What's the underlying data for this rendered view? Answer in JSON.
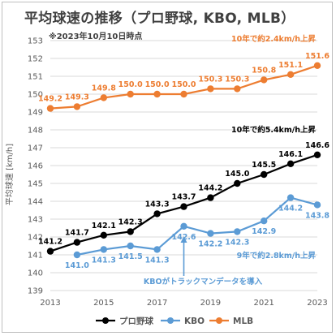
{
  "title": "平均球速の推移（プロ野球, KBO, MLB）",
  "subtitle": "※2023年10月10日時点",
  "chart_data": {
    "type": "line",
    "ylabel": "平均球速 [km/h]",
    "xlabel": "",
    "ylim": [
      139,
      153
    ],
    "xlim": [
      2013,
      2023
    ],
    "yticks": [
      "139",
      "140",
      "141",
      "142",
      "143",
      "144",
      "145",
      "146",
      "147",
      "148",
      "149",
      "150",
      "151",
      "152",
      "153"
    ],
    "xticks": [
      "2013",
      "2015",
      "2017",
      "2019",
      "2021",
      "2023"
    ],
    "grid": true,
    "legend_position": "bottom",
    "series": [
      {
        "name": "プロ野球",
        "color": "#000000",
        "x": [
          2013,
          2014,
          2015,
          2016,
          2017,
          2018,
          2019,
          2020,
          2021,
          2022,
          2023
        ],
        "values": [
          141.2,
          141.7,
          142.1,
          142.3,
          143.3,
          143.7,
          144.2,
          145.0,
          145.5,
          146.1,
          146.6
        ],
        "labels": [
          "141.2",
          "141.7",
          "142.1",
          "142.3",
          "143.3",
          "143.7",
          "144.2",
          "145.0",
          "145.5",
          "146.1",
          "146.6"
        ]
      },
      {
        "name": "KBO",
        "color": "#5b9bd5",
        "x": [
          2014,
          2015,
          2016,
          2017,
          2018,
          2019,
          2020,
          2021,
          2022,
          2023
        ],
        "values": [
          141.0,
          141.3,
          141.5,
          141.3,
          142.6,
          142.2,
          142.3,
          142.9,
          144.2,
          143.8
        ],
        "labels": [
          "141.0",
          "141.3",
          "141.5",
          "141.3",
          "142.6",
          "142.2",
          "142.3",
          "142.9",
          "144.2",
          "143.8"
        ]
      },
      {
        "name": "MLB",
        "color": "#ed7d31",
        "x": [
          2013,
          2014,
          2015,
          2016,
          2017,
          2018,
          2019,
          2020,
          2021,
          2022,
          2023
        ],
        "values": [
          149.2,
          149.3,
          149.8,
          150.0,
          150.0,
          150.0,
          150.3,
          150.3,
          150.8,
          151.1,
          151.6
        ],
        "labels": [
          "149.2",
          "149.3",
          "149.8",
          "150.0",
          "150.0",
          "150.0",
          "150.3",
          "150.3",
          "150.8",
          "151.1",
          "151.6"
        ]
      }
    ],
    "annotations": [
      {
        "text": "10年で約2.4km/h上昇",
        "color": "#ed7d31"
      },
      {
        "text": "10年で約5.4km/h上昇",
        "color": "#000000"
      },
      {
        "text": "9年で約2.8km/h上昇",
        "color": "#5b9bd5"
      },
      {
        "text": "KBOがトラックマンデータを導入",
        "color": "#5b9bd5"
      }
    ]
  }
}
